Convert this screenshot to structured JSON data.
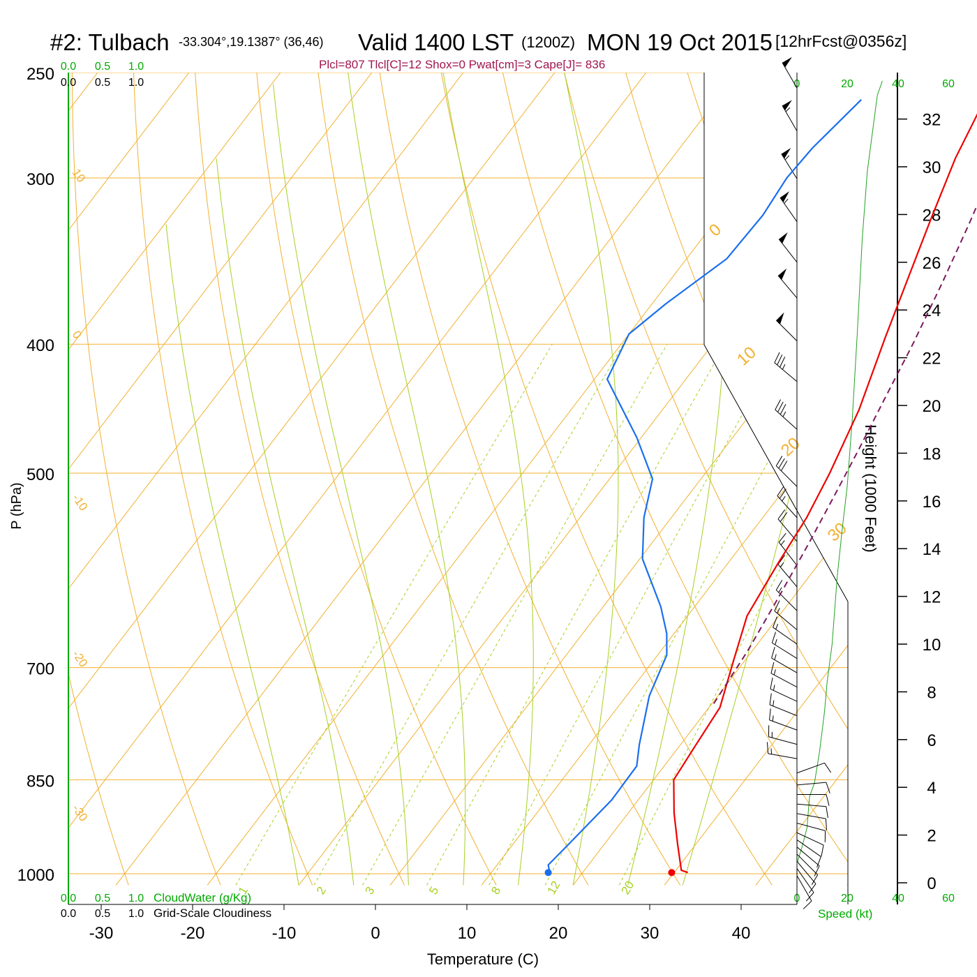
{
  "header": {
    "station": "#2: Tulbach",
    "coords": "-33.304°,19.1387° (36,46)",
    "valid": "Valid 1400 LST",
    "zulu": "(1200Z)",
    "date": "MON 19 Oct 2015",
    "forecast": "[12hrFcst@0356z]",
    "indices": "Plcl=807 Tlcl[C]=12 Shox=0 Pwat[cm]=3 Cape[J]= 836"
  },
  "chart_data": {
    "type": "line",
    "subtype": "skew-T log-P sounding",
    "xlabel": "Temperature (C)",
    "ylabel": "P (hPa)",
    "right_axis_label": "Height (1000 Feet)",
    "x_ticks": [
      -30,
      -20,
      -10,
      0,
      10,
      20,
      30,
      40
    ],
    "xlim": [
      -33.5,
      36.1
    ],
    "pressure_ticks": [
      250,
      300,
      400,
      500,
      700,
      850,
      1000
    ],
    "plim": [
      1020,
      250
    ],
    "height_ticks_kft": [
      0,
      2,
      4,
      6,
      8,
      10,
      12,
      14,
      16,
      18,
      20,
      22,
      24,
      26,
      28,
      30,
      32
    ],
    "cloud_scale_top_green": [
      "0.0",
      "0.5",
      "1.0"
    ],
    "cloud_scale_top_black": [
      "0.0",
      "0.5",
      "1.0"
    ],
    "cloud_scale_bottom_green": [
      "0.0",
      "0.5",
      "1.0"
    ],
    "cloud_scale_bottom_black": [
      "0.0",
      "0.5",
      "1.0"
    ],
    "cloudwater_label": "CloudWater (g/Kg)",
    "cloudiness_label": "Grid-Scale Cloudiness",
    "speed_ticks": [
      "0",
      "20",
      "40",
      "60"
    ],
    "speed_label": "Speed (kt)",
    "isotherm_labels": [
      "-30",
      "-20",
      "-10",
      "0",
      "10",
      "20",
      "30"
    ],
    "dry_adiabat_labels": [
      "10",
      "0",
      "-10",
      "-20",
      "-30"
    ],
    "mixing_ratio_labels": [
      "1",
      "2",
      "3",
      "5",
      "8",
      "12",
      "20"
    ],
    "series": [
      {
        "key": "temperature",
        "color": "#ee0000",
        "points": [
          [
            -0.7,
            262
          ],
          [
            1.0,
            290
          ],
          [
            3.4,
            322
          ],
          [
            5.8,
            356
          ],
          [
            8.3,
            395
          ],
          [
            11.5,
            448
          ],
          [
            13.6,
            500
          ],
          [
            14.8,
            540
          ],
          [
            15.5,
            585
          ],
          [
            16.5,
            640
          ],
          [
            18.7,
            690
          ],
          [
            21.2,
            750
          ],
          [
            21.7,
            800
          ],
          [
            22.2,
            850
          ],
          [
            25.0,
            900
          ],
          [
            28.0,
            950
          ],
          [
            30.6,
            994
          ],
          [
            31.5,
            998
          ]
        ]
      },
      {
        "key": "dewpoint",
        "color": "#1a6eee",
        "points": [
          [
            -14.2,
            262
          ],
          [
            -15.5,
            285
          ],
          [
            -15.8,
            300
          ],
          [
            -15.3,
            320
          ],
          [
            -15.6,
            345
          ],
          [
            -18.5,
            373
          ],
          [
            -20.0,
            393
          ],
          [
            -18.6,
            425
          ],
          [
            -10.5,
            470
          ],
          [
            -5.3,
            505
          ],
          [
            -3.0,
            540
          ],
          [
            0.3,
            580
          ],
          [
            6.3,
            630
          ],
          [
            9.2,
            660
          ],
          [
            11.0,
            685
          ],
          [
            12.5,
            735
          ],
          [
            15.5,
            800
          ],
          [
            17.0,
            830
          ],
          [
            17.1,
            880
          ],
          [
            16.1,
            950
          ],
          [
            15.6,
            985
          ],
          [
            16.4,
            998
          ]
        ]
      },
      {
        "key": "parcel",
        "color": "#7a1a5e",
        "style": "dashed",
        "points": [
          [
            20.2,
            745
          ],
          [
            19.5,
            680
          ],
          [
            18.4,
            620
          ],
          [
            17.2,
            565
          ],
          [
            16.0,
            520
          ],
          [
            14.8,
            480
          ],
          [
            13.4,
            440
          ],
          [
            11.9,
            400
          ],
          [
            10.0,
            360
          ],
          [
            8.0,
            325
          ],
          [
            5.6,
            290
          ],
          [
            3.5,
            264
          ],
          [
            1.2,
            262
          ]
        ]
      }
    ],
    "surface_markers": [
      {
        "key": "surface-temperature",
        "temp": 32.4,
        "p": 998,
        "color": "#ee0000"
      },
      {
        "key": "surface-dewpoint",
        "temp": 18.9,
        "p": 998,
        "color": "#1a6eee"
      }
    ],
    "height_profile_kft": [
      [
        0,
        0.8
      ],
      [
        2,
        1.5
      ],
      [
        4,
        2.3
      ],
      [
        5,
        3.6
      ],
      [
        7,
        4.2
      ],
      [
        9,
        5.5
      ],
      [
        11,
        7.2
      ],
      [
        12,
        8.4
      ],
      [
        13,
        9.2
      ],
      [
        14,
        10.0
      ],
      [
        16,
        12.8
      ],
      [
        18,
        14.8
      ],
      [
        20,
        16.6
      ],
      [
        22,
        19.4
      ],
      [
        24,
        23.0
      ],
      [
        26,
        27.0
      ],
      [
        28,
        29.8
      ],
      [
        30,
        31.4
      ],
      [
        32,
        33.0
      ],
      [
        34,
        33.6
      ]
    ],
    "wind_barbs": [
      {
        "h": 0.3,
        "spd": 8,
        "dir": 150
      },
      {
        "h": 0.6,
        "spd": 8,
        "dir": 145
      },
      {
        "h": 0.9,
        "spd": 10,
        "dir": 140
      },
      {
        "h": 1.2,
        "spd": 10,
        "dir": 135
      },
      {
        "h": 1.5,
        "spd": 12,
        "dir": 130
      },
      {
        "h": 1.8,
        "spd": 12,
        "dir": 125
      },
      {
        "h": 2.1,
        "spd": 12,
        "dir": 115
      },
      {
        "h": 2.5,
        "spd": 12,
        "dir": 105
      },
      {
        "h": 2.9,
        "spd": 10,
        "dir": 100
      },
      {
        "h": 3.3,
        "spd": 10,
        "dir": 95
      },
      {
        "h": 3.7,
        "spd": 8,
        "dir": 90
      },
      {
        "h": 4.1,
        "spd": 8,
        "dir": 85
      },
      {
        "h": 4.6,
        "spd": 10,
        "dir": 70
      },
      {
        "h": 5.2,
        "spd": 15,
        "dir": 280
      },
      {
        "h": 5.8,
        "spd": 15,
        "dir": 285
      },
      {
        "h": 6.4,
        "spd": 15,
        "dir": 290
      },
      {
        "h": 7.0,
        "spd": 15,
        "dir": 292
      },
      {
        "h": 7.6,
        "spd": 15,
        "dir": 295
      },
      {
        "h": 8.2,
        "spd": 15,
        "dir": 298
      },
      {
        "h": 8.8,
        "spd": 15,
        "dir": 300
      },
      {
        "h": 9.4,
        "spd": 15,
        "dir": 302
      },
      {
        "h": 10.0,
        "spd": 15,
        "dir": 305
      },
      {
        "h": 10.6,
        "spd": 15,
        "dir": 310
      },
      {
        "h": 11.4,
        "spd": 15,
        "dir": 315
      },
      {
        "h": 12.4,
        "spd": 15,
        "dir": 320
      },
      {
        "h": 13.3,
        "spd": 15,
        "dir": 322
      },
      {
        "h": 14.3,
        "spd": 20,
        "dir": 320
      },
      {
        "h": 15.3,
        "spd": 25,
        "dir": 318
      },
      {
        "h": 16.6,
        "spd": 30,
        "dir": 315
      },
      {
        "h": 19.0,
        "spd": 35,
        "dir": 312
      },
      {
        "h": 21.0,
        "spd": 35,
        "dir": 310
      },
      {
        "h": 22.7,
        "spd": 50,
        "dir": 315
      },
      {
        "h": 24.5,
        "spd": 50,
        "dir": 320
      },
      {
        "h": 26.0,
        "spd": 50,
        "dir": 322
      },
      {
        "h": 27.7,
        "spd": 55,
        "dir": 325
      },
      {
        "h": 29.5,
        "spd": 55,
        "dir": 328
      },
      {
        "h": 31.5,
        "spd": 55,
        "dir": 330
      },
      {
        "h": 33.3,
        "spd": 50,
        "dir": 330
      }
    ]
  }
}
